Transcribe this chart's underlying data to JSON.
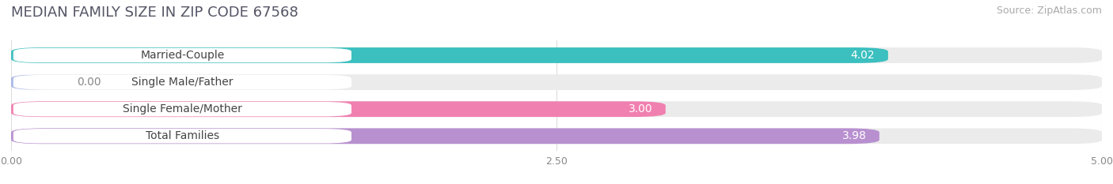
{
  "title": "MEDIAN FAMILY SIZE IN ZIP CODE 67568",
  "source": "Source: ZipAtlas.com",
  "categories": [
    "Married-Couple",
    "Single Male/Father",
    "Single Female/Mother",
    "Total Families"
  ],
  "values": [
    4.02,
    0.0,
    3.0,
    3.98
  ],
  "bar_colors": [
    "#3bbfbf",
    "#aab8e8",
    "#f080b0",
    "#b890d0"
  ],
  "xlim": [
    0,
    5.0
  ],
  "xticks": [
    0.0,
    2.5,
    5.0
  ],
  "xticklabels": [
    "0.00",
    "2.50",
    "5.00"
  ],
  "bar_height": 0.58,
  "background_color": "#ffffff",
  "bar_background_color": "#ebebeb",
  "title_fontsize": 13,
  "source_fontsize": 9,
  "label_fontsize": 10,
  "value_fontsize": 10
}
